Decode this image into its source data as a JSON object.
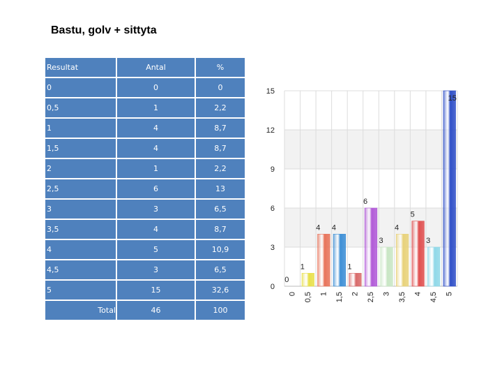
{
  "page": {
    "title": "Bastu, golv + sittyta"
  },
  "table": {
    "headers": [
      "Resultat",
      "Antal",
      "%"
    ],
    "rows": [
      [
        "0",
        "0",
        "0"
      ],
      [
        "0,5",
        "1",
        "2,2"
      ],
      [
        "1",
        "4",
        "8,7"
      ],
      [
        "1,5",
        "4",
        "8,7"
      ],
      [
        "2",
        "1",
        "2,2"
      ],
      [
        "2,5",
        "6",
        "13"
      ],
      [
        "3",
        "3",
        "6,5"
      ],
      [
        "3,5",
        "4",
        "8,7"
      ],
      [
        "4",
        "5",
        "10,9"
      ],
      [
        "4,5",
        "3",
        "6,5"
      ],
      [
        "5",
        "15",
        "32,6"
      ]
    ],
    "total": [
      "Total",
      "46",
      "100"
    ]
  },
  "chart_data": {
    "type": "bar",
    "categories": [
      "0",
      "0,5",
      "1",
      "1,5",
      "2",
      "2,5",
      "3",
      "3,5",
      "4",
      "4,5",
      "5"
    ],
    "values": [
      0,
      1,
      4,
      4,
      1,
      6,
      3,
      4,
      5,
      3,
      15
    ],
    "ylim": [
      0,
      15
    ],
    "yticks": [
      0,
      3,
      6,
      9,
      12,
      15
    ],
    "grid": true,
    "legend": "none",
    "colors": [
      "#cccccc",
      "#e8e04a",
      "#e8735a",
      "#3d8fd6",
      "#d96a6a",
      "#b15ad8",
      "#c8e6c4",
      "#e8d27a",
      "#e05050",
      "#8fd8e8",
      "#2f4fc8"
    ]
  }
}
